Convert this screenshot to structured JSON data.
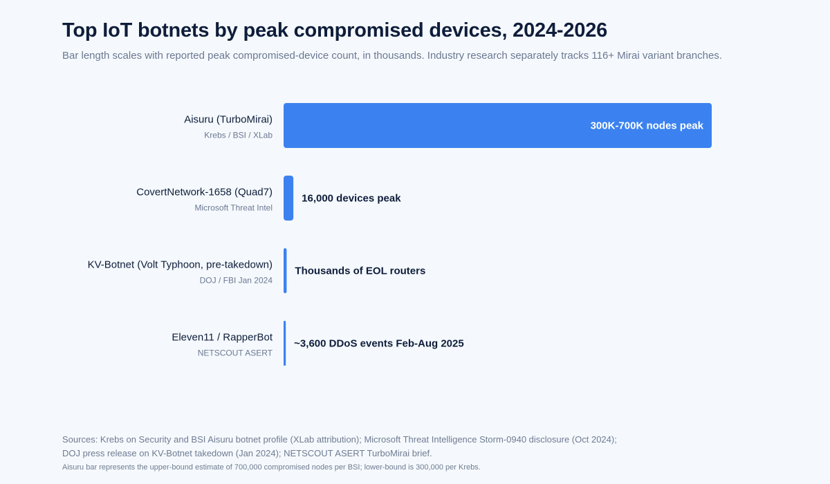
{
  "title": "Top IoT botnets by peak compromised devices, 2024-2026",
  "subtitle": "Bar length scales with reported peak compromised-device count, in thousands. Industry research separately tracks 116+ Mirai variant branches.",
  "colors": {
    "bar": "#3b82f0",
    "label_inside": "#ffffff",
    "label_outside": "#0e1d3a",
    "name": "#0e1d3a",
    "source": "#6b7891"
  },
  "chart_data": {
    "type": "bar",
    "orientation": "horizontal",
    "unit": "thousands of devices",
    "xlim": [
      0,
      700
    ],
    "grid": false,
    "legend": "none",
    "categories": [
      "Aisuru (TurboMirai)",
      "CovertNetwork-1658 (Quad7)",
      "KV-Botnet (Volt Typhoon, pre-takedown)",
      "Eleven11 / RapperBot"
    ],
    "sources": [
      "Krebs / BSI / XLab",
      "Microsoft Threat Intel",
      "DOJ / FBI Jan 2024",
      "NETSCOUT ASERT"
    ],
    "values": [
      700,
      16,
      5,
      3.6
    ],
    "data_labels": [
      "300K-700K nodes peak",
      "16,000 devices peak",
      "Thousands of EOL routers",
      "~3,600 DDoS events Feb-Aug 2025"
    ]
  },
  "footer": {
    "line1": "Sources: Krebs on Security and BSI Aisuru botnet profile (XLab attribution); Microsoft Threat Intelligence Storm-0940 disclosure (Oct 2024);",
    "line2": "DOJ press release on KV-Botnet takedown (Jan 2024); NETSCOUT ASERT TurboMirai brief.",
    "note": "Aisuru bar represents the upper-bound estimate of 700,000 compromised nodes per BSI; lower-bound is 300,000 per Krebs."
  }
}
